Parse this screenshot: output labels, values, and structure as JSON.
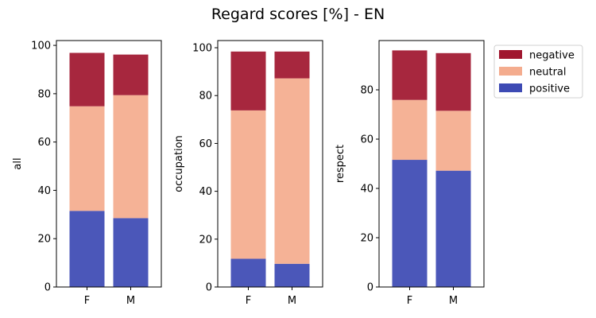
{
  "chart_data": {
    "type": "bar",
    "stacked": true,
    "title": "Regard scores [%] - EN",
    "legend": {
      "placement": "outside-right-top",
      "entries": [
        {
          "name": "negative",
          "color": "#a0172f"
        },
        {
          "name": "neutral",
          "color": "#f4ac8e"
        },
        {
          "name": "positive",
          "color": "#3d4ab4"
        }
      ]
    },
    "subplots": [
      {
        "ylabel": "all",
        "categories": [
          "F",
          "M"
        ],
        "ylim": [
          0,
          102
        ],
        "yticks": [
          0,
          20,
          40,
          60,
          80,
          100
        ],
        "series": [
          {
            "name": "positive",
            "values": [
              31.5,
              28.5
            ]
          },
          {
            "name": "neutral",
            "values": [
              43.3,
              50.9
            ]
          },
          {
            "name": "negative",
            "values": [
              22.1,
              16.8
            ]
          }
        ]
      },
      {
        "ylabel": "occupation",
        "categories": [
          "F",
          "M"
        ],
        "ylim": [
          0,
          103
        ],
        "yticks": [
          0,
          20,
          40,
          60,
          80,
          100
        ],
        "series": [
          {
            "name": "positive",
            "values": [
              11.8,
              9.7
            ]
          },
          {
            "name": "neutral",
            "values": [
              62.0,
              77.5
            ]
          },
          {
            "name": "negative",
            "values": [
              24.6,
              11.2
            ]
          }
        ]
      },
      {
        "ylabel": "respect",
        "categories": [
          "F",
          "M"
        ],
        "ylim": [
          0,
          100
        ],
        "yticks": [
          0,
          20,
          40,
          60,
          80
        ],
        "series": [
          {
            "name": "positive",
            "values": [
              51.6,
              47.2
            ]
          },
          {
            "name": "neutral",
            "values": [
              24.3,
              24.3
            ]
          },
          {
            "name": "negative",
            "values": [
              20.1,
              23.4
            ]
          }
        ]
      }
    ]
  }
}
